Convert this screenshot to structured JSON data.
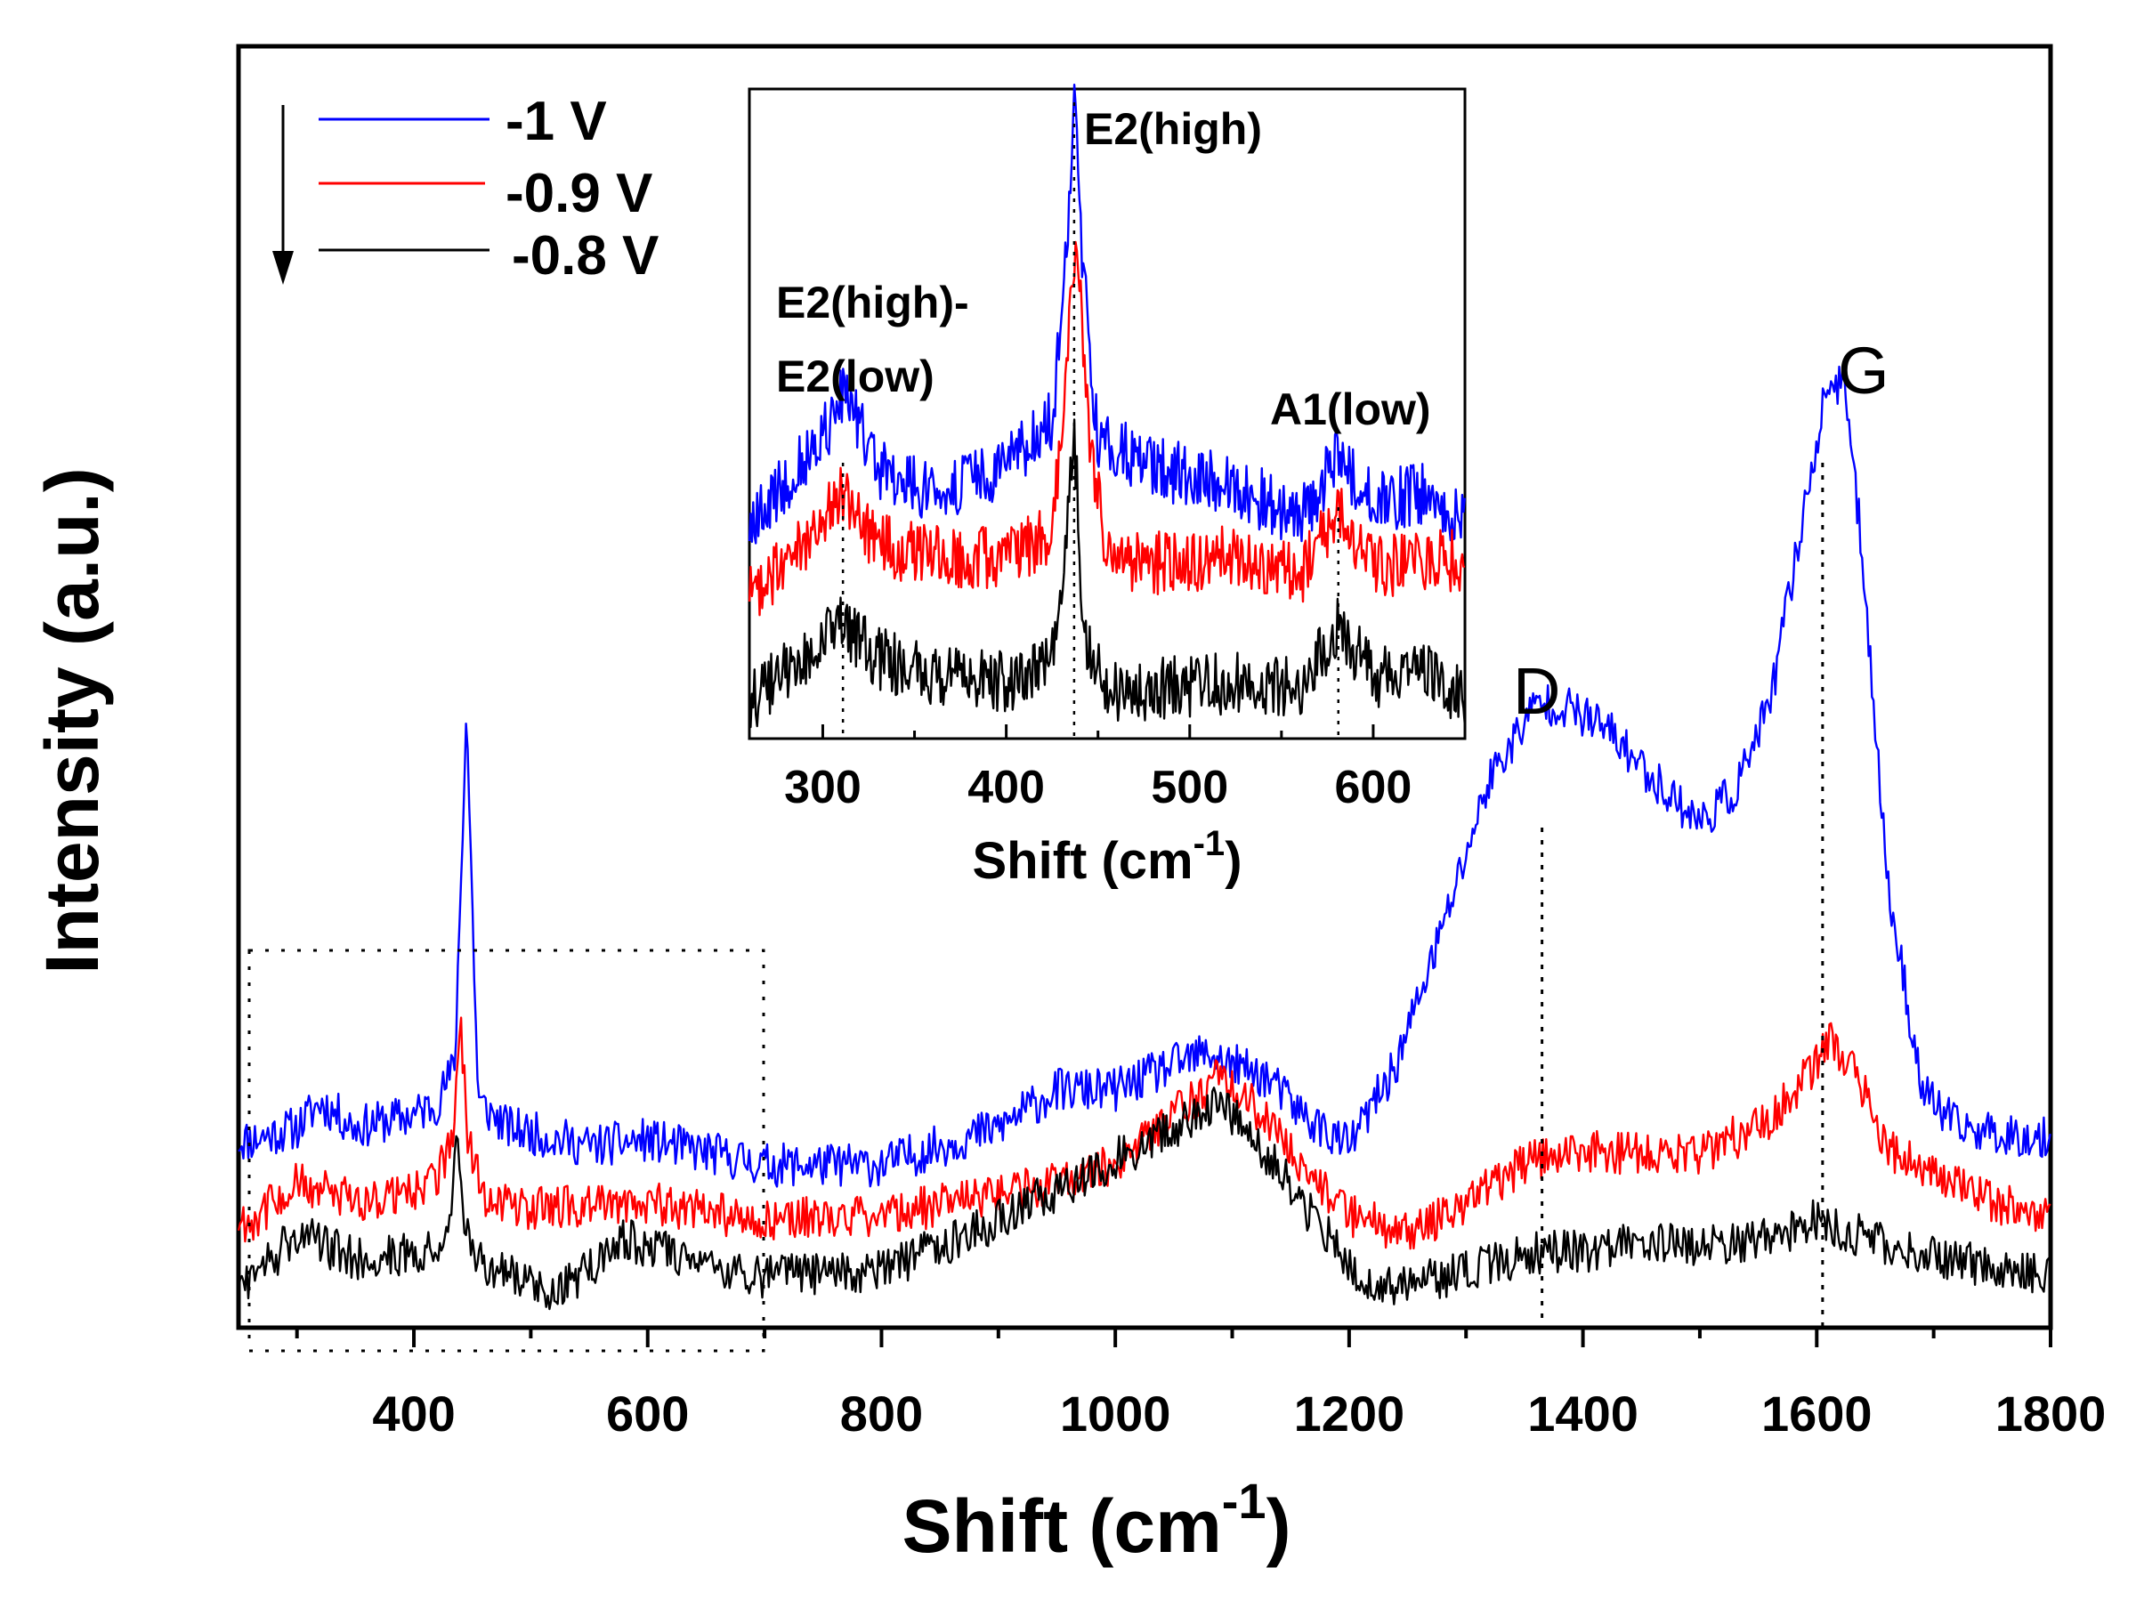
{
  "chart_data": {
    "type": "line",
    "xlabel": "Shift (cm",
    "xlabel_sup": "-1",
    "xlabel_close": ")",
    "ylabel": "Intensity (a.u.)",
    "xlim": [
      250,
      1800
    ],
    "xticks": [
      "400",
      "600",
      "800",
      "1000",
      "1200",
      "1400",
      "1600",
      "1800"
    ],
    "grid": false,
    "legend_position": "top-left",
    "series": [
      {
        "name": "-1 V",
        "color": "#0000ff",
        "x": [
          260,
          300,
          320,
          350,
          400,
          420,
          435,
          445,
          455,
          480,
          550,
          600,
          700,
          800,
          900,
          950,
          1000,
          1050,
          1080,
          1100,
          1130,
          1160,
          1200,
          1240,
          1280,
          1320,
          1360,
          1380,
          1420,
          1460,
          1500,
          1530,
          1560,
          1590,
          1610,
          1625,
          1640,
          1660,
          1690,
          1720,
          1800
        ],
        "y": [
          0.28,
          0.3,
          0.34,
          0.3,
          0.32,
          0.34,
          0.4,
          0.97,
          0.34,
          0.3,
          0.27,
          0.28,
          0.24,
          0.24,
          0.3,
          0.36,
          0.36,
          0.4,
          0.42,
          0.4,
          0.38,
          0.32,
          0.27,
          0.4,
          0.62,
          0.86,
          0.98,
          0.98,
          0.94,
          0.86,
          0.79,
          0.84,
          0.98,
          1.3,
          1.5,
          1.48,
          1.2,
          0.7,
          0.36,
          0.3,
          0.28
        ]
      },
      {
        "name": "-0.9 V",
        "color": "#ff0000",
        "x": [
          260,
          300,
          350,
          400,
          420,
          435,
          440,
          446,
          460,
          500,
          600,
          700,
          800,
          900,
          1000,
          1050,
          1090,
          1120,
          1160,
          1200,
          1250,
          1300,
          1360,
          1400,
          1450,
          1500,
          1550,
          1580,
          1610,
          1630,
          1660,
          1700,
          1750,
          1800
        ],
        "y": [
          0.15,
          0.21,
          0.18,
          0.2,
          0.22,
          0.3,
          0.48,
          0.28,
          0.19,
          0.17,
          0.18,
          0.15,
          0.16,
          0.19,
          0.24,
          0.32,
          0.38,
          0.33,
          0.24,
          0.16,
          0.13,
          0.18,
          0.25,
          0.26,
          0.26,
          0.26,
          0.3,
          0.35,
          0.44,
          0.4,
          0.27,
          0.22,
          0.18,
          0.16
        ]
      },
      {
        "name": "-0.8 V",
        "color": "#000000",
        "x": [
          260,
          300,
          350,
          400,
          430,
          437,
          442,
          460,
          500,
          520,
          580,
          700,
          800,
          900,
          1000,
          1050,
          1090,
          1120,
          1160,
          1200,
          1230,
          1300,
          1360,
          1400,
          1450,
          1500,
          1550,
          1600,
          1650,
          1700,
          1800
        ],
        "y": [
          0.05,
          0.13,
          0.09,
          0.1,
          0.12,
          0.28,
          0.14,
          0.07,
          0.06,
          0.03,
          0.12,
          0.06,
          0.07,
          0.15,
          0.25,
          0.3,
          0.34,
          0.28,
          0.18,
          0.08,
          0.04,
          0.07,
          0.1,
          0.1,
          0.12,
          0.11,
          0.12,
          0.15,
          0.12,
          0.09,
          0.06
        ]
      }
    ],
    "annotations": [
      {
        "text": "D",
        "x": 1365
      },
      {
        "text": "G",
        "x": 1605
      }
    ],
    "inset": {
      "xlabel": "Shift (cm",
      "xlabel_sup": "-1",
      "xlabel_close": ")",
      "xlim": [
        260,
        650
      ],
      "xticks": [
        "300",
        "400",
        "500",
        "600"
      ],
      "annotations": [
        {
          "text": "E2(high)",
          "x": 437
        },
        {
          "text": "E2(high)-",
          "x": 311
        },
        {
          "text": "E2(low)",
          "x": 311
        },
        {
          "text": "A1(low)",
          "x": 581
        }
      ],
      "series": [
        {
          "name": "-1 V",
          "color": "#0000ff",
          "x": [
            260,
            280,
            300,
            311,
            330,
            360,
            400,
            425,
            432,
            437,
            442,
            450,
            480,
            520,
            560,
            581,
            600,
            630,
            650
          ],
          "y": [
            0.3,
            0.38,
            0.45,
            0.52,
            0.4,
            0.36,
            0.4,
            0.48,
            0.7,
            1.0,
            0.7,
            0.45,
            0.4,
            0.38,
            0.32,
            0.42,
            0.35,
            0.36,
            0.32
          ]
        },
        {
          "name": "-0.9 V",
          "color": "#ff0000",
          "x": [
            260,
            290,
            311,
            330,
            360,
            400,
            425,
            432,
            438,
            445,
            455,
            480,
            520,
            560,
            581,
            600,
            630,
            650
          ],
          "y": [
            0.2,
            0.28,
            0.36,
            0.28,
            0.26,
            0.26,
            0.3,
            0.5,
            0.78,
            0.45,
            0.26,
            0.25,
            0.26,
            0.23,
            0.33,
            0.24,
            0.26,
            0.25
          ]
        },
        {
          "name": "-0.8 V",
          "color": "#000000",
          "x": [
            260,
            290,
            311,
            330,
            360,
            400,
            425,
            432,
            437,
            442,
            455,
            480,
            520,
            560,
            581,
            600,
            630,
            650
          ],
          "y": [
            0.03,
            0.1,
            0.15,
            0.1,
            0.07,
            0.06,
            0.1,
            0.25,
            0.47,
            0.14,
            0.05,
            0.05,
            0.06,
            0.05,
            0.15,
            0.07,
            0.07,
            0.04
          ]
        }
      ]
    }
  }
}
